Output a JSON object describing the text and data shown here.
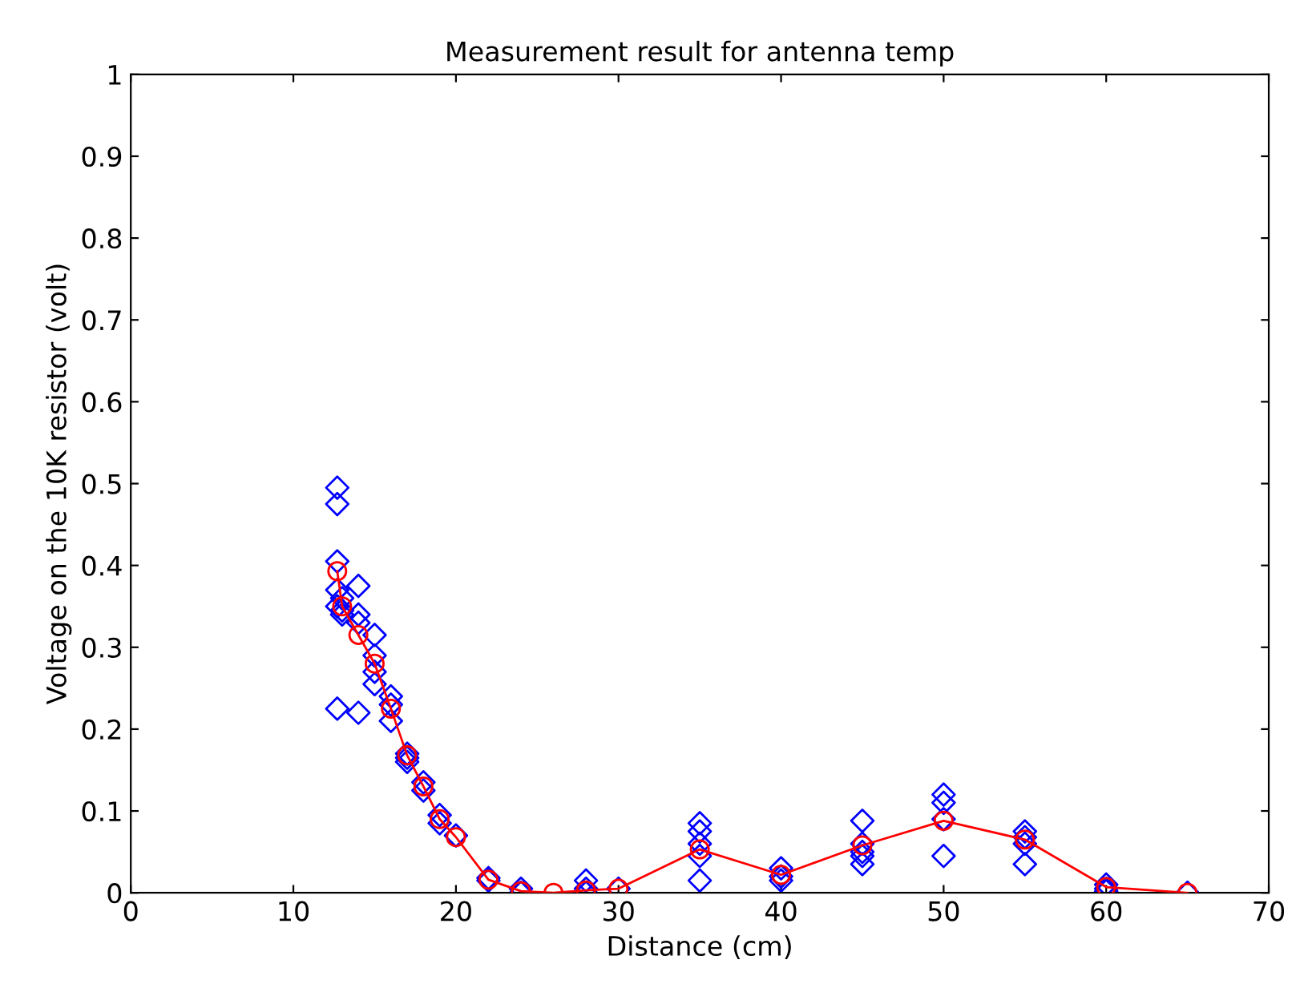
{
  "chart_data": {
    "type": "scatter",
    "title": "Measurement result for antenna temp",
    "xlabel": "Distance (cm)",
    "ylabel": "Voltage on the 10K resistor (volt)",
    "xlim": [
      0,
      70
    ],
    "xticks": [
      0,
      10,
      20,
      30,
      40,
      50,
      60,
      70
    ],
    "ylim": [
      0,
      1
    ],
    "yticks": [
      0,
      0.1,
      0.2,
      0.3,
      0.4,
      0.5,
      0.6,
      0.7,
      0.8,
      0.9,
      1
    ],
    "grid": false,
    "legend": false,
    "series": [
      {
        "marker": "diamond",
        "line_style": "none",
        "color": "#0000ff",
        "x": [
          12.7,
          12.7,
          12.7,
          12.7,
          12.7,
          12.7,
          13,
          13,
          13,
          14,
          14,
          14,
          14,
          15,
          15,
          15,
          15,
          16,
          16,
          16,
          17,
          17,
          17,
          18,
          18,
          19,
          19,
          20,
          22,
          22,
          24,
          24,
          28,
          28,
          28,
          30,
          35,
          35,
          35,
          35,
          35,
          40,
          40,
          40,
          45,
          45,
          45,
          45,
          45,
          50,
          50,
          50,
          50,
          55,
          55,
          55,
          55,
          60,
          60,
          60,
          65
        ],
        "values": [
          0.495,
          0.475,
          0.405,
          0.37,
          0.35,
          0.225,
          0.36,
          0.345,
          0.34,
          0.375,
          0.34,
          0.33,
          0.22,
          0.315,
          0.29,
          0.27,
          0.255,
          0.24,
          0.23,
          0.21,
          0.17,
          0.165,
          0.16,
          0.135,
          0.125,
          0.095,
          0.085,
          0.07,
          0.018,
          0.015,
          0.005,
          0.0,
          0.015,
          0.005,
          0.0,
          0.005,
          0.085,
          0.075,
          0.06,
          0.045,
          0.015,
          0.03,
          0.02,
          0.015,
          0.088,
          0.06,
          0.05,
          0.045,
          0.035,
          0.12,
          0.11,
          0.09,
          0.045,
          0.075,
          0.068,
          0.06,
          0.035,
          0.01,
          0.005,
          0.002,
          0.0
        ]
      },
      {
        "type": "line",
        "marker": "circle",
        "line_style": "solid",
        "color": "#ff0000",
        "x": [
          12.7,
          13,
          14,
          15,
          16,
          17,
          18,
          19,
          20,
          22,
          24,
          26,
          28,
          30,
          35,
          40,
          45,
          50,
          55,
          60,
          65
        ],
        "values": [
          0.393,
          0.35,
          0.315,
          0.28,
          0.225,
          0.168,
          0.13,
          0.09,
          0.068,
          0.016,
          0.002,
          0.0,
          0.003,
          0.005,
          0.053,
          0.022,
          0.058,
          0.088,
          0.065,
          0.007,
          0.0
        ]
      }
    ]
  }
}
